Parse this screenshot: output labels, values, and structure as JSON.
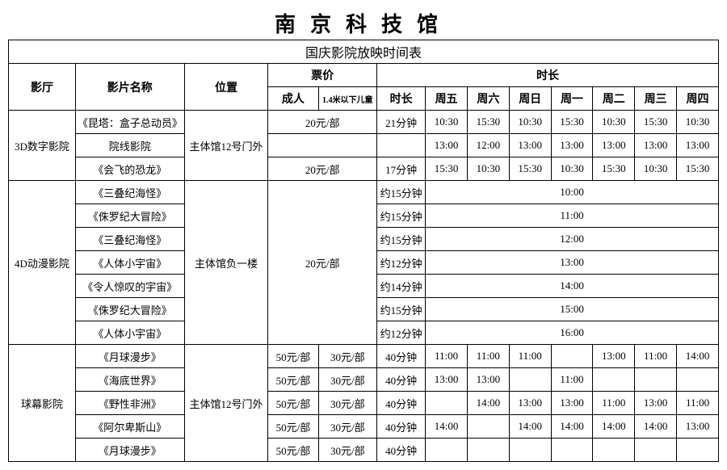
{
  "title": "南京科技馆",
  "subtitle": "国庆影院放映时间表",
  "headers": {
    "hall": "影厅",
    "film": "影片名称",
    "location": "位置",
    "price": "票价",
    "duration": "时长",
    "adult": "成人",
    "child": "1.4米以下儿童",
    "dur2": "时长",
    "d1": "周五",
    "d2": "周六",
    "d3": "周日",
    "d4": "周一",
    "d5": "周二",
    "d6": "周三",
    "d7": "周四"
  },
  "hall1": {
    "name": "3D数字影院",
    "location": "主体馆12号门外",
    "rows": [
      {
        "film": "《昆塔：盒子总动员》",
        "price": "20元/部",
        "dur": "21分钟",
        "t": [
          "10:30",
          "15:30",
          "10:30",
          "15:30",
          "10:30",
          "15:30",
          "10:30"
        ]
      },
      {
        "film": "院线影院",
        "price": "",
        "dur": "",
        "t": [
          "13:00",
          "12:00",
          "13:00",
          "13:00",
          "13:00",
          "13:00",
          "13:00"
        ]
      },
      {
        "film": "《会飞的恐龙》",
        "price": "20元/部",
        "dur": "17分钟",
        "t": [
          "15:30",
          "10:30",
          "15:30",
          "10:30",
          "15:30",
          "10:30",
          "15:30"
        ]
      }
    ]
  },
  "hall2": {
    "name": "4D动漫影院",
    "location": "主体馆负一楼",
    "price": "20元/部",
    "rows": [
      {
        "film": "《三叠纪海怪》",
        "dur": "约15分钟",
        "time": "10:00"
      },
      {
        "film": "《侏罗纪大冒险》",
        "dur": "约15分钟",
        "time": "11:00"
      },
      {
        "film": "《三叠纪海怪》",
        "dur": "约15分钟",
        "time": "12:00"
      },
      {
        "film": "《人体小宇宙》",
        "dur": "约12分钟",
        "time": "13:00"
      },
      {
        "film": "《令人惊叹的宇宙》",
        "dur": "约14分钟",
        "time": "14:00"
      },
      {
        "film": "《侏罗纪大冒险》",
        "dur": "约15分钟",
        "time": "15:00"
      },
      {
        "film": "《人体小宇宙》",
        "dur": "约12分钟",
        "time": "16:00"
      }
    ]
  },
  "hall3": {
    "name": "球幕影院",
    "location": "主体馆12号门外",
    "adult": "50元/部",
    "child": "30元/部",
    "dur": "40分钟",
    "rows": [
      {
        "film": "《月球漫步》",
        "t": [
          "11:00",
          "11:00",
          "11:00",
          "",
          "13:00",
          "11:00",
          "14:00"
        ]
      },
      {
        "film": "《海底世界》",
        "t": [
          "13:00",
          "13:00",
          "",
          "11:00",
          "",
          "",
          ""
        ]
      },
      {
        "film": "《野性非洲》",
        "t": [
          "",
          "14:00",
          "13:00",
          "13:00",
          "11:00",
          "13:00",
          "11:00"
        ]
      },
      {
        "film": "《阿尔卑斯山》",
        "t": [
          "14:00",
          "",
          "14:00",
          "14:00",
          "14:00",
          "14:00",
          "13:00"
        ]
      },
      {
        "film": "《月球漫步》",
        "t": [
          "",
          "",
          "",
          "",
          "",
          "",
          ""
        ]
      }
    ]
  }
}
